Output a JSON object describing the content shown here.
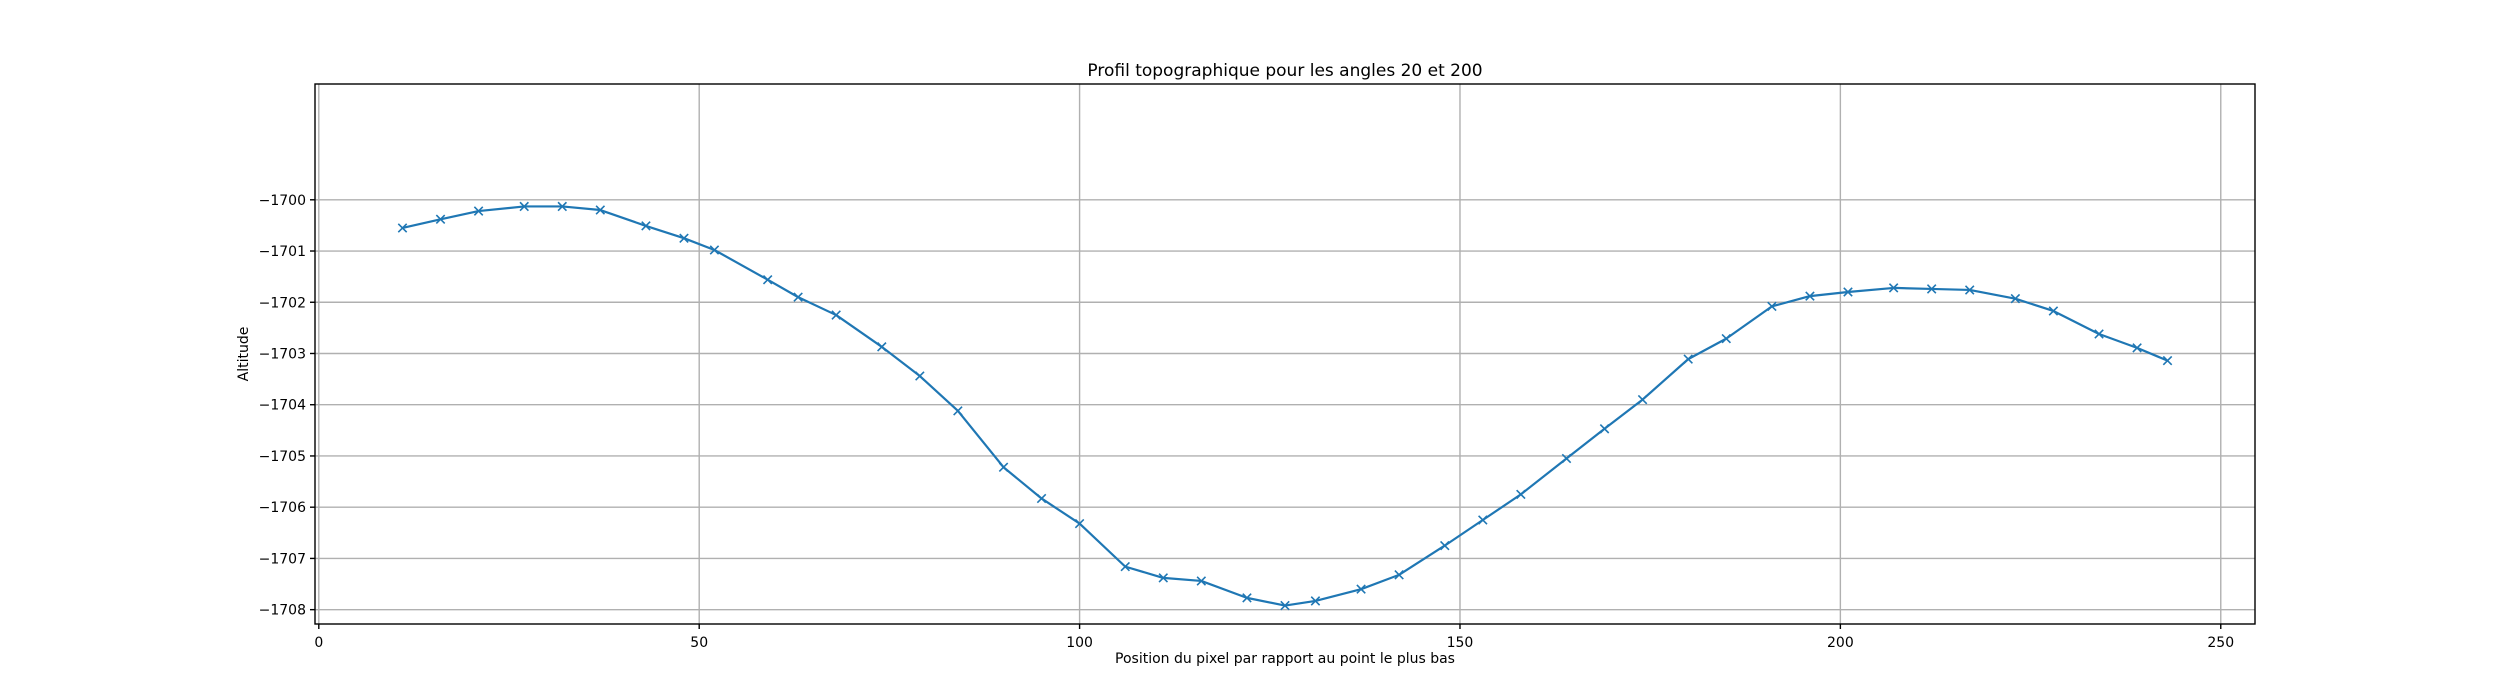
{
  "chart_data": {
    "type": "line",
    "title": "Profil topographique pour les angles 20 et 200",
    "xlabel": "Position du pixel par rapport au point le plus bas",
    "ylabel": "Altitude",
    "xlim": [
      -0.5,
      254.5
    ],
    "ylim": [
      -1708.28,
      -1697.74
    ],
    "xticks": [
      0,
      50,
      100,
      150,
      200,
      250
    ],
    "yticks": [
      -1700,
      -1701,
      -1702,
      -1703,
      -1704,
      -1705,
      -1706,
      -1707,
      -1708
    ],
    "grid": true,
    "marker": "x",
    "color": "#1f77b4",
    "series": [
      {
        "x": [
          11,
          16,
          21,
          27,
          32,
          37,
          43,
          48,
          52,
          59,
          63,
          68,
          74,
          79,
          84,
          90,
          95,
          100,
          106,
          111,
          116,
          122,
          127,
          131,
          137,
          142,
          148,
          153,
          158,
          164,
          169,
          174,
          180,
          185,
          191,
          196,
          201,
          207,
          212,
          217,
          223,
          228,
          234,
          239,
          243
        ],
        "y": [
          -1700.55,
          -1700.38,
          -1700.22,
          -1700.13,
          -1700.13,
          -1700.2,
          -1700.51,
          -1700.75,
          -1700.98,
          -1701.56,
          -1701.9,
          -1702.25,
          -1702.87,
          -1703.44,
          -1704.12,
          -1705.22,
          -1705.83,
          -1706.32,
          -1707.16,
          -1707.38,
          -1707.44,
          -1707.77,
          -1707.92,
          -1707.83,
          -1707.6,
          -1707.32,
          -1706.75,
          -1706.25,
          -1705.75,
          -1705.05,
          -1704.47,
          -1703.9,
          -1703.11,
          -1702.71,
          -1702.08,
          -1701.88,
          -1701.8,
          -1701.72,
          -1701.74,
          -1701.76,
          -1701.93,
          -1702.17,
          -1702.62,
          -1702.89,
          -1703.14
        ]
      }
    ]
  }
}
